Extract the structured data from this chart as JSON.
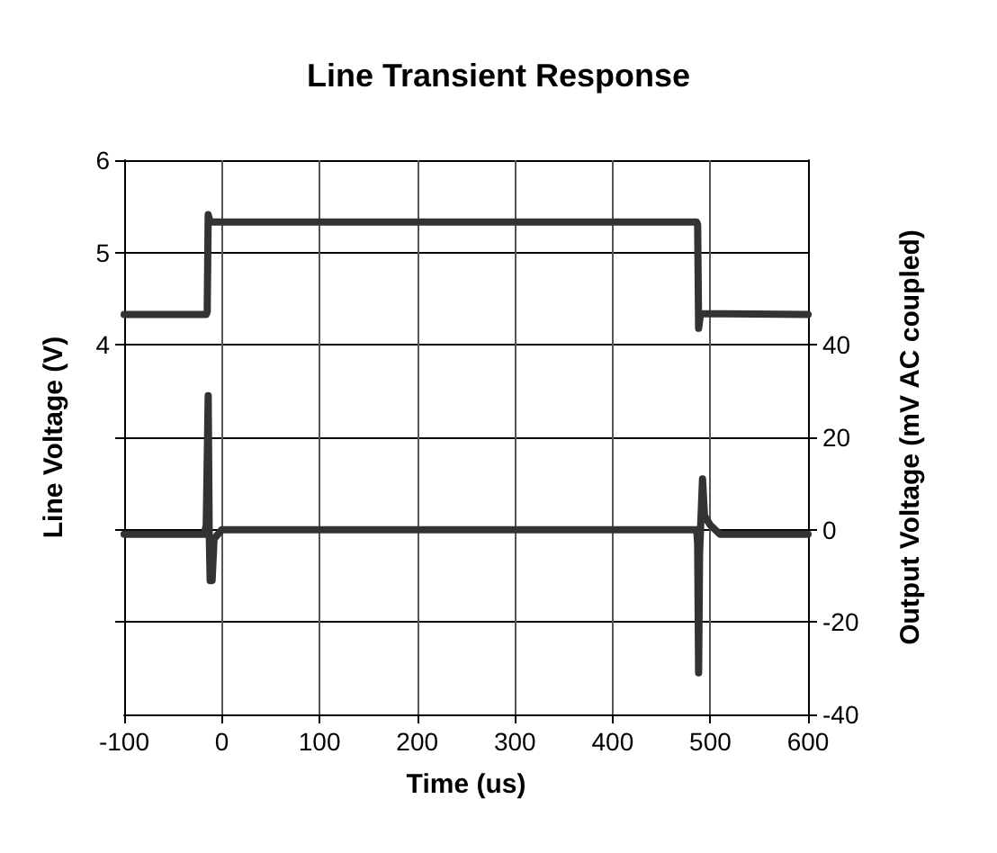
{
  "chart_data": {
    "type": "line",
    "title": "Line Transient Response",
    "xlabel": "Time (us)",
    "ylabel": "Line Voltage (V)",
    "y2label": "Output Voltage (mV AC coupled)",
    "xlim": [
      -100,
      600
    ],
    "xticks": [
      -100,
      0,
      100,
      200,
      300,
      400,
      500,
      600
    ],
    "ylim": [
      0,
      6
    ],
    "yticks": [
      {
        "value": 1,
        "label": null
      },
      {
        "value": 2,
        "label": null
      },
      {
        "value": 3,
        "label": null
      },
      4,
      5,
      6
    ],
    "y2lim": [
      -40,
      80
    ],
    "y2ticks": [
      -40,
      -20,
      0,
      20,
      40
    ],
    "grid": true,
    "marker": "none",
    "line_style": "solid",
    "series": [
      {
        "color": "#333333",
        "x": [
          -100,
          -16,
          -15,
          -14,
          -12,
          486,
          487,
          488,
          490,
          600
        ],
        "values": [
          4.33,
          4.33,
          4.36,
          5.41,
          5.33,
          5.33,
          5.3,
          4.18,
          4.34,
          4.33
        ]
      },
      {
        "color": "#333333",
        "axis": "y2",
        "x": [
          -100,
          -18,
          -16,
          -14,
          -13,
          -12,
          -10,
          -8,
          0,
          486,
          487,
          488,
          489,
          492,
          494,
          500,
          510,
          600
        ],
        "values": [
          -1,
          -1,
          1,
          29,
          0,
          -11,
          -11,
          -2,
          0,
          0,
          -3,
          -31,
          -5,
          11,
          3,
          1,
          -1,
          -1
        ]
      }
    ]
  }
}
